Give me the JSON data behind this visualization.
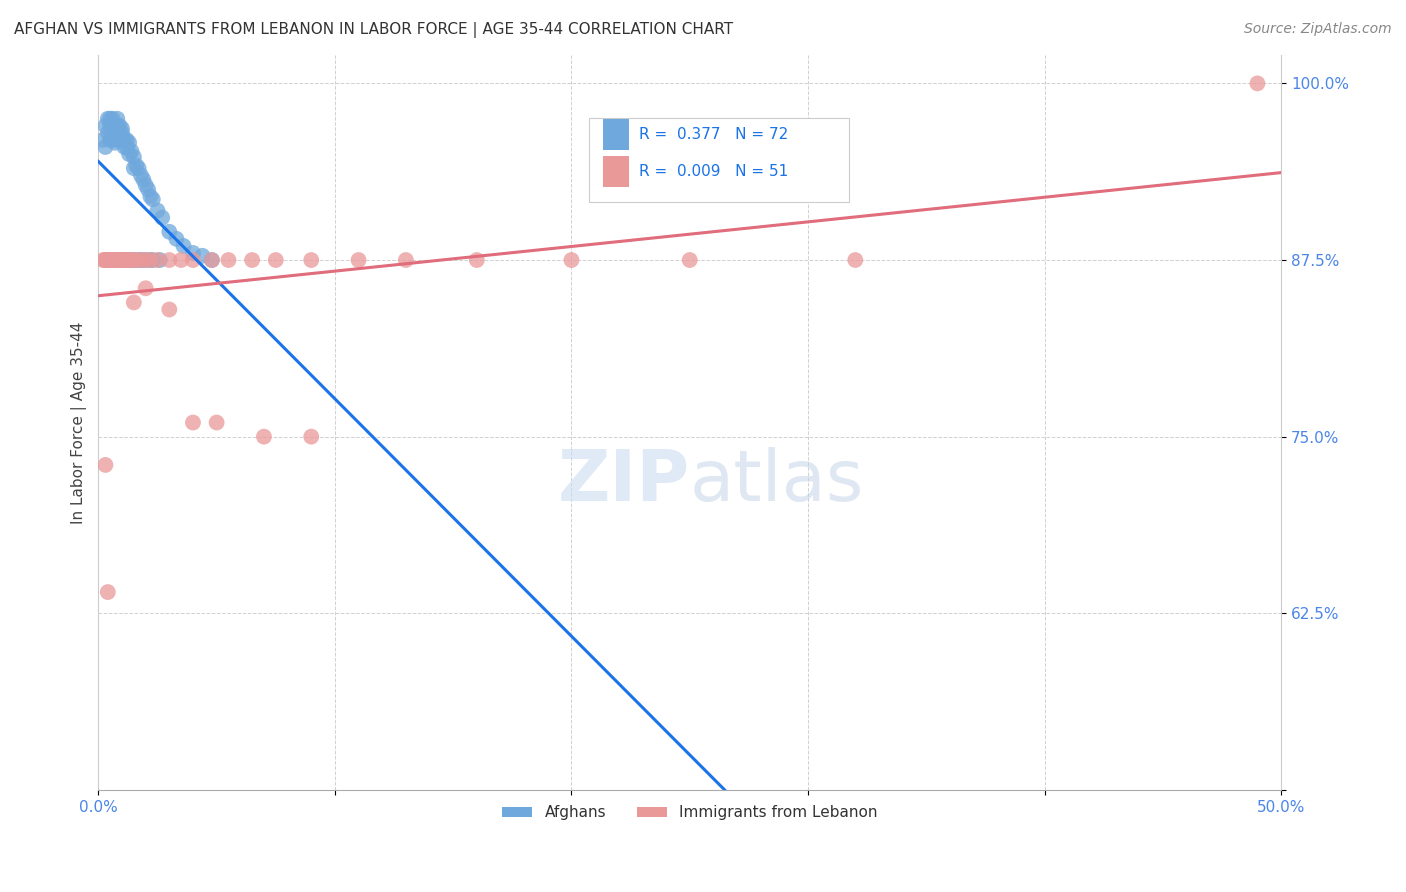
{
  "title": "AFGHAN VS IMMIGRANTS FROM LEBANON IN LABOR FORCE | AGE 35-44 CORRELATION CHART",
  "source": "Source: ZipAtlas.com",
  "ylabel": "In Labor Force | Age 35-44",
  "xlim": [
    0.0,
    0.5
  ],
  "ylim": [
    0.5,
    1.02
  ],
  "afghan_R": 0.377,
  "afghan_N": 72,
  "lebanon_R": 0.009,
  "lebanon_N": 51,
  "afghan_color": "#6fa8dc",
  "lebanon_color": "#ea9999",
  "afghan_line_color": "#1a73e8",
  "lebanon_line_color": "#e06c7c",
  "afghan_x": [
    0.002,
    0.003,
    0.003,
    0.004,
    0.004,
    0.005,
    0.005,
    0.005,
    0.006,
    0.006,
    0.006,
    0.007,
    0.007,
    0.007,
    0.008,
    0.008,
    0.008,
    0.009,
    0.009,
    0.009,
    0.01,
    0.01,
    0.01,
    0.011,
    0.011,
    0.012,
    0.012,
    0.013,
    0.013,
    0.014,
    0.015,
    0.015,
    0.016,
    0.017,
    0.018,
    0.019,
    0.02,
    0.021,
    0.022,
    0.023,
    0.025,
    0.027,
    0.03,
    0.033,
    0.036,
    0.04,
    0.044,
    0.048,
    0.003,
    0.004,
    0.005,
    0.006,
    0.007,
    0.008,
    0.009,
    0.01,
    0.011,
    0.012,
    0.014,
    0.016,
    0.018,
    0.02,
    0.023,
    0.026,
    0.004,
    0.006,
    0.008,
    0.01,
    0.012,
    0.015,
    0.018,
    0.022
  ],
  "afghan_y": [
    0.96,
    0.97,
    0.955,
    0.965,
    0.975,
    0.97,
    0.96,
    0.975,
    0.968,
    0.975,
    0.96,
    0.97,
    0.958,
    0.965,
    0.97,
    0.96,
    0.975,
    0.965,
    0.97,
    0.96,
    0.968,
    0.96,
    0.965,
    0.96,
    0.955,
    0.96,
    0.955,
    0.95,
    0.958,
    0.952,
    0.948,
    0.94,
    0.942,
    0.94,
    0.935,
    0.932,
    0.928,
    0.925,
    0.92,
    0.918,
    0.91,
    0.905,
    0.895,
    0.89,
    0.885,
    0.88,
    0.878,
    0.875,
    0.875,
    0.875,
    0.875,
    0.875,
    0.875,
    0.875,
    0.875,
    0.875,
    0.875,
    0.875,
    0.875,
    0.875,
    0.875,
    0.875,
    0.875,
    0.875,
    0.875,
    0.875,
    0.875,
    0.875,
    0.875,
    0.875,
    0.875,
    0.875
  ],
  "lebanon_x": [
    0.002,
    0.003,
    0.003,
    0.004,
    0.004,
    0.005,
    0.005,
    0.006,
    0.006,
    0.007,
    0.007,
    0.008,
    0.008,
    0.009,
    0.009,
    0.01,
    0.01,
    0.011,
    0.012,
    0.013,
    0.014,
    0.015,
    0.016,
    0.018,
    0.02,
    0.022,
    0.025,
    0.03,
    0.035,
    0.04,
    0.048,
    0.055,
    0.065,
    0.075,
    0.09,
    0.11,
    0.13,
    0.16,
    0.2,
    0.25,
    0.32,
    0.49,
    0.015,
    0.02,
    0.03,
    0.04,
    0.05,
    0.07,
    0.09,
    0.003,
    0.004
  ],
  "lebanon_y": [
    0.875,
    0.875,
    0.875,
    0.875,
    0.875,
    0.875,
    0.875,
    0.875,
    0.875,
    0.875,
    0.875,
    0.875,
    0.875,
    0.875,
    0.875,
    0.875,
    0.875,
    0.875,
    0.875,
    0.875,
    0.875,
    0.875,
    0.875,
    0.875,
    0.875,
    0.875,
    0.875,
    0.875,
    0.875,
    0.875,
    0.875,
    0.875,
    0.875,
    0.875,
    0.875,
    0.875,
    0.875,
    0.875,
    0.875,
    0.875,
    0.875,
    1.0,
    0.845,
    0.855,
    0.84,
    0.76,
    0.76,
    0.75,
    0.75,
    0.73,
    0.64
  ]
}
